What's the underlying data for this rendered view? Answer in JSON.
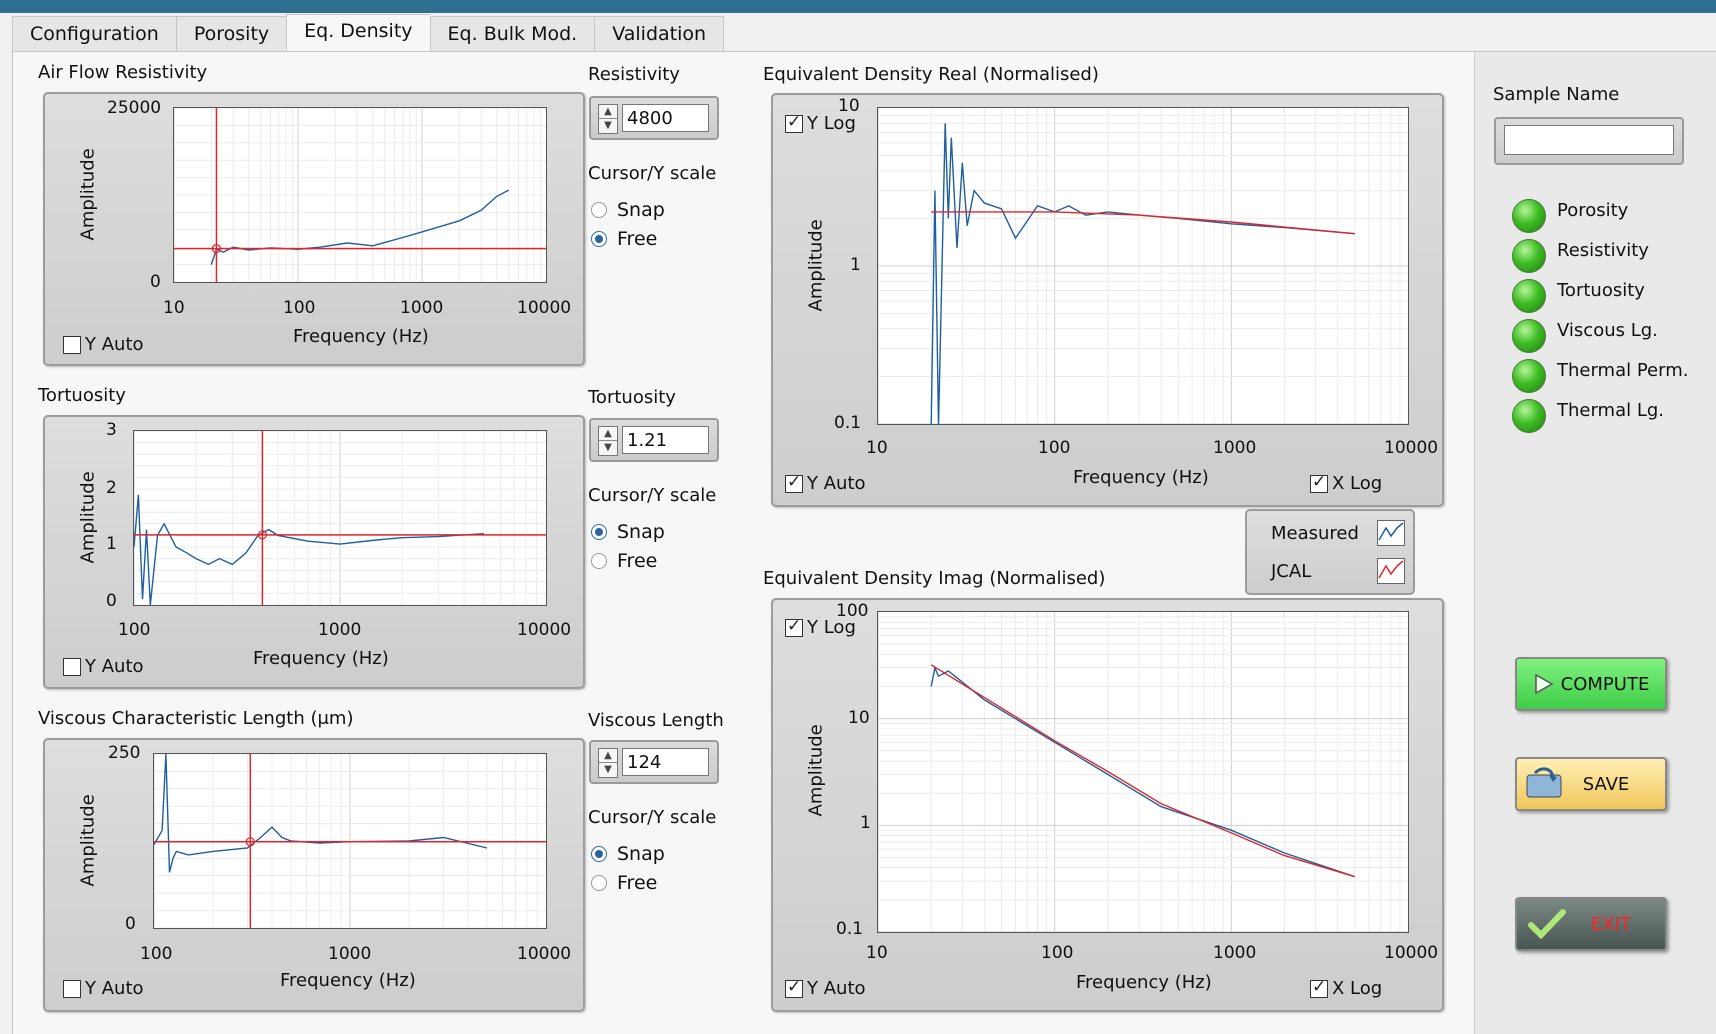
{
  "tabs": [
    "Configuration",
    "Porosity",
    "Eq. Density",
    "Eq. Bulk Mod.",
    "Validation"
  ],
  "active_tab": "Eq. Density",
  "airflow": {
    "title": "Air Flow Resistivity",
    "control_label": "Resistivity",
    "value": "4800",
    "cursor_label": "Cursor/Y scale",
    "snap": "Snap",
    "free": "Free",
    "mode": "free",
    "y_auto": "Y Auto",
    "xlabel": "Frequency (Hz)",
    "ylabel": "Amplitude",
    "xticks": [
      "10",
      "100",
      "1000",
      "10000"
    ],
    "yticks": [
      "25000",
      "0"
    ]
  },
  "tortuosity": {
    "title": "Tortuosity",
    "control_label": "Tortuosity",
    "value": "1.21",
    "cursor_label": "Cursor/Y scale",
    "snap": "Snap",
    "free": "Free",
    "mode": "snap",
    "y_auto": "Y Auto",
    "xlabel": "Frequency (Hz)",
    "ylabel": "Amplitude",
    "xticks": [
      "100",
      "1000",
      "10000"
    ],
    "yticks": [
      "3",
      "2",
      "1",
      "0"
    ]
  },
  "viscous": {
    "title": "Viscous Characteristic Length (μm)",
    "control_label": "Viscous Length",
    "value": "124",
    "cursor_label": "Cursor/Y scale",
    "snap": "Snap",
    "free": "Free",
    "mode": "snap",
    "y_auto": "Y Auto",
    "xlabel": "Frequency (Hz)",
    "ylabel": "Amplitude",
    "xticks": [
      "100",
      "1000",
      "10000"
    ],
    "yticks": [
      "250",
      "0"
    ]
  },
  "eq_real": {
    "title": "Equivalent Density Real (Normalised)",
    "y_log": "Y Log",
    "y_auto": "Y Auto",
    "x_log": "X Log",
    "xlabel": "Frequency (Hz)",
    "ylabel": "Amplitude",
    "xticks": [
      "10",
      "100",
      "1000",
      "10000"
    ],
    "yticks": [
      "10",
      "1",
      "0.1"
    ]
  },
  "eq_imag": {
    "title": "Equivalent Density Imag (Normalised)",
    "y_log": "Y Log",
    "y_auto": "Y Auto",
    "x_log": "X Log",
    "xlabel": "Frequency (Hz)",
    "ylabel": "Amplitude",
    "xticks": [
      "10",
      "100",
      "1000",
      "10000"
    ],
    "yticks": [
      "100",
      "10",
      "1",
      "0.1"
    ]
  },
  "legend": {
    "measured": "Measured",
    "jcal": "JCAL",
    "measured_color": "#1f5f9f",
    "jcal_color": "#e0262a"
  },
  "sample": {
    "label": "Sample Name",
    "value": ""
  },
  "indicators": [
    "Porosity",
    "Resistivity",
    "Tortuosity",
    "Viscous Lg.",
    "Thermal Perm.",
    "Thermal Lg."
  ],
  "buttons": {
    "compute": "COMPUTE",
    "save": "SAVE",
    "exit": "EXIT"
  },
  "chart_data": [
    {
      "type": "line",
      "title": "Air Flow Resistivity",
      "xlabel": "Frequency (Hz)",
      "ylabel": "Amplitude",
      "x_scale": "log",
      "xlim": [
        10,
        10000
      ],
      "ylim": [
        0,
        25000
      ],
      "series": [
        {
          "name": "Measured",
          "x": [
            20,
            22,
            25,
            30,
            40,
            60,
            100,
            150,
            250,
            400,
            700,
            1000,
            2000,
            3000,
            4000,
            5000
          ],
          "y": [
            2500,
            4700,
            4300,
            5000,
            4600,
            4900,
            4700,
            5000,
            5600,
            5200,
            6400,
            7200,
            8800,
            10300,
            12300,
            13200
          ]
        }
      ],
      "cursor": {
        "x": 22,
        "y": 4800
      }
    },
    {
      "type": "line",
      "title": "Tortuosity",
      "xlabel": "Frequency (Hz)",
      "ylabel": "Amplitude",
      "x_scale": "log",
      "xlim": [
        100,
        10000
      ],
      "ylim": [
        0,
        3
      ],
      "series": [
        {
          "name": "Measured",
          "x": [
            100,
            105,
            110,
            115,
            120,
            130,
            140,
            160,
            180,
            200,
            230,
            260,
            300,
            350,
            400,
            450,
            500,
            700,
            1000,
            1500,
            2000,
            3000,
            5000
          ],
          "y": [
            1.0,
            1.9,
            0.1,
            1.3,
            0.0,
            1.2,
            1.4,
            1.0,
            0.9,
            0.8,
            0.7,
            0.8,
            0.7,
            0.9,
            1.2,
            1.3,
            1.2,
            1.1,
            1.05,
            1.12,
            1.16,
            1.18,
            1.23
          ]
        }
      ],
      "cursor": {
        "x": 420,
        "y": 1.21
      }
    },
    {
      "type": "line",
      "title": "Viscous Characteristic Length (μm)",
      "xlabel": "Frequency (Hz)",
      "ylabel": "Amplitude",
      "x_scale": "log",
      "xlim": [
        100,
        10000
      ],
      "ylim": [
        0,
        250
      ],
      "series": [
        {
          "name": "Measured",
          "x": [
            100,
            110,
            115,
            120,
            125,
            130,
            150,
            200,
            300,
            350,
            400,
            450,
            500,
            700,
            1000,
            2000,
            3000,
            5000
          ],
          "y": [
            120,
            140,
            250,
            80,
            100,
            110,
            105,
            110,
            115,
            130,
            145,
            130,
            125,
            122,
            124,
            125,
            130,
            115
          ]
        }
      ],
      "cursor": {
        "x": 310,
        "y": 124
      }
    },
    {
      "type": "line",
      "title": "Equivalent Density Real (Normalised)",
      "xlabel": "Frequency (Hz)",
      "ylabel": "Amplitude",
      "x_scale": "log",
      "y_scale": "log",
      "xlim": [
        10,
        10000
      ],
      "ylim": [
        0.1,
        10
      ],
      "series": [
        {
          "name": "Measured",
          "x": [
            20,
            21,
            22,
            24,
            25,
            26,
            28,
            30,
            32,
            35,
            40,
            50,
            60,
            80,
            100,
            120,
            150,
            200,
            300,
            500,
            1000,
            2000,
            5000
          ],
          "y": [
            0.05,
            3.0,
            0.05,
            8.0,
            2.0,
            6.5,
            1.3,
            4.5,
            1.8,
            3.0,
            2.5,
            2.3,
            1.5,
            2.4,
            2.2,
            2.4,
            2.1,
            2.2,
            2.1,
            2.0,
            1.85,
            1.75,
            1.6
          ]
        },
        {
          "name": "JCAL",
          "x": [
            20,
            100,
            300,
            1000,
            5000
          ],
          "y": [
            2.2,
            2.2,
            2.1,
            1.9,
            1.6
          ]
        }
      ]
    },
    {
      "type": "line",
      "title": "Equivalent Density Imag (Normalised)",
      "xlabel": "Frequency (Hz)",
      "ylabel": "Amplitude",
      "x_scale": "log",
      "y_scale": "log",
      "xlim": [
        10,
        10000
      ],
      "ylim": [
        0.1,
        100
      ],
      "series": [
        {
          "name": "Measured",
          "x": [
            20,
            21,
            22,
            25,
            30,
            40,
            60,
            100,
            200,
            400,
            1000,
            2000,
            5000
          ],
          "y": [
            20,
            30,
            25,
            28,
            22,
            15,
            10,
            6,
            3,
            1.5,
            0.9,
            0.55,
            0.33
          ]
        },
        {
          "name": "JCAL",
          "x": [
            20,
            100,
            200,
            400,
            1000,
            2000,
            5000
          ],
          "y": [
            32,
            6.2,
            3.2,
            1.6,
            0.85,
            0.52,
            0.33
          ]
        }
      ]
    }
  ]
}
